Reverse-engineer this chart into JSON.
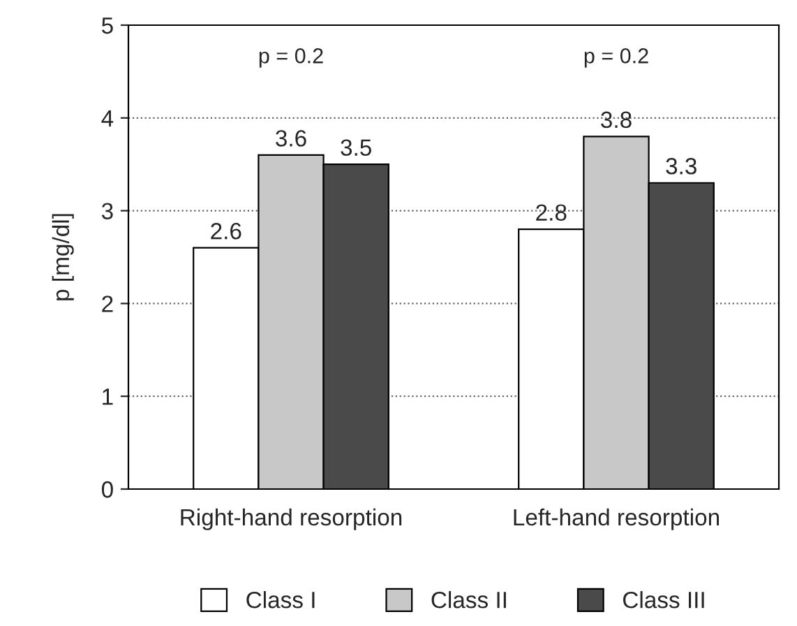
{
  "chart_data": {
    "type": "bar",
    "ylabel": "p [mg/dl]",
    "categories": [
      "Right-hand resorption",
      "Left-hand resorption"
    ],
    "series": [
      {
        "name": "Class I",
        "color": "#ffffff",
        "values": [
          2.6,
          2.8
        ]
      },
      {
        "name": "Class II",
        "color": "#c8c8c8",
        "values": [
          3.6,
          3.8
        ]
      },
      {
        "name": "Class III",
        "color": "#4a4a4a",
        "values": [
          3.5,
          3.3
        ]
      }
    ],
    "ylim": [
      0,
      5
    ],
    "yticks": [
      0,
      1,
      2,
      3,
      4,
      5
    ],
    "grid": "y",
    "legend": "bottom",
    "data_labels": true,
    "annotations": [
      "p = 0.2",
      "p = 0.2"
    ]
  }
}
